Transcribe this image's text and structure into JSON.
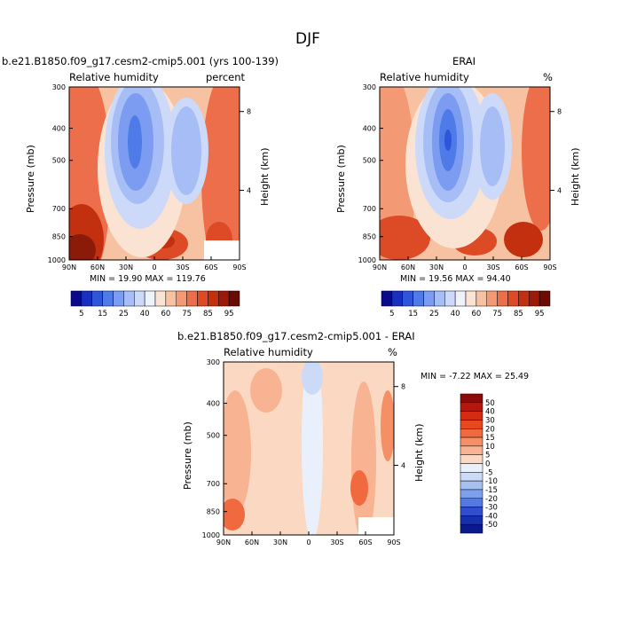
{
  "figure": {
    "title": "DJF"
  },
  "chart_data": [
    {
      "type": "heatmap",
      "id": "model",
      "case_title": "b.e21.B1850.f09_g17.cesm2-cmip5.001 (yrs 100-139)",
      "variable": "Relative humidity",
      "units": "percent",
      "xlabel": "",
      "ylabel": "Pressure (mb)",
      "ylabel_right": "Height (km)",
      "x_ticks": [
        "90N",
        "60N",
        "30N",
        "0",
        "30S",
        "60S",
        "90S"
      ],
      "y_ticks": [
        "300",
        "400",
        "500",
        "700",
        "850",
        "1000"
      ],
      "y_ticks_right": [
        "8",
        "4"
      ],
      "stats_text": "MIN =   19.90   MAX =  119.76",
      "min": 19.9,
      "max": 119.76,
      "colorbar": {
        "labels": [
          "5",
          "15",
          "25",
          "40",
          "60",
          "75",
          "85",
          "95"
        ],
        "colors": [
          "#0a0a8c",
          "#1a2fbf",
          "#2f55d8",
          "#4f7be8",
          "#7b9cf0",
          "#a7bdf5",
          "#cdd9f8",
          "#eef2fb",
          "#fbe3d3",
          "#f7c2a2",
          "#f39a75",
          "#ec6e4a",
          "#dc4a26",
          "#c2300f",
          "#9a1b08",
          "#6b0c02"
        ]
      }
    },
    {
      "type": "heatmap",
      "id": "obs",
      "case_title": "ERAI",
      "variable": "Relative humidity",
      "units": "%",
      "ylabel": "Pressure (mb)",
      "ylabel_right": "Height (km)",
      "x_ticks": [
        "90N",
        "60N",
        "30N",
        "0",
        "30S",
        "60S",
        "90S"
      ],
      "y_ticks": [
        "300",
        "400",
        "500",
        "700",
        "850",
        "1000"
      ],
      "y_ticks_right": [
        "8",
        "4"
      ],
      "stats_text": "MIN =   19.56   MAX =   94.40",
      "min": 19.56,
      "max": 94.4,
      "colorbar": {
        "labels": [
          "5",
          "15",
          "25",
          "40",
          "60",
          "75",
          "85",
          "95"
        ]
      }
    },
    {
      "type": "heatmap",
      "id": "diff",
      "case_title": "b.e21.B1850.f09_g17.cesm2-cmip5.001 - ERAI",
      "variable": "Relative humidity",
      "units": "%",
      "ylabel": "Pressure (mb)",
      "ylabel_right": "Height (km)",
      "x_ticks": [
        "90N",
        "60N",
        "30N",
        "0",
        "30S",
        "60S",
        "90S"
      ],
      "y_ticks": [
        "300",
        "400",
        "500",
        "700",
        "850",
        "1000"
      ],
      "y_ticks_right": [
        "8",
        "4"
      ],
      "stats_text": "MIN =   -7.22   MAX =   25.49",
      "min": -7.22,
      "max": 25.49,
      "colorbar": {
        "labels": [
          "50",
          "40",
          "30",
          "20",
          "15",
          "10",
          "5",
          "0",
          "-5",
          "-10",
          "-15",
          "-20",
          "-30",
          "-40",
          "-50"
        ],
        "colors": [
          "#8c0a0a",
          "#b5170c",
          "#d42b12",
          "#e8481f",
          "#f16a3f",
          "#f58f66",
          "#f8b492",
          "#fbd8c2",
          "#eaf0fb",
          "#cbdaf6",
          "#a7c0f2",
          "#7e9fec",
          "#5679e0",
          "#2f4fcf",
          "#1630b0",
          "#0a1a8c"
        ]
      }
    }
  ]
}
